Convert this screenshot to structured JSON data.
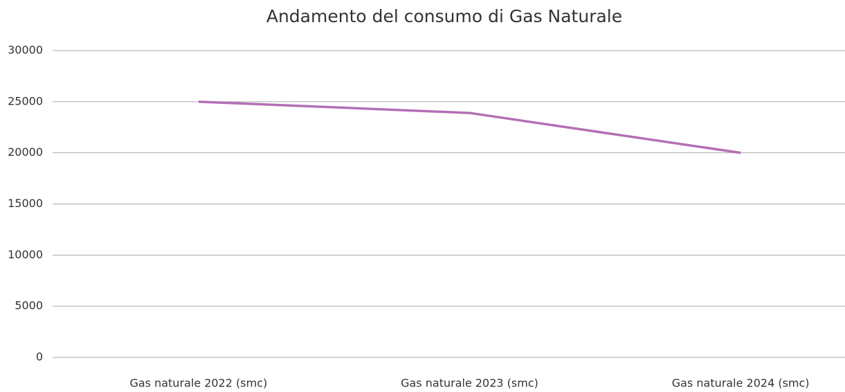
{
  "chart_data": {
    "type": "line",
    "title": "Andamento del consumo di Gas Naturale",
    "categories": [
      "Gas naturale 2022 (smc)",
      "Gas naturale 2023 (smc)",
      "Gas naturale 2024 (smc)"
    ],
    "series": [
      {
        "name": "Gas naturale",
        "color": "#b46fb4",
        "values": [
          25000,
          23900,
          20000
        ]
      }
    ],
    "ylim": [
      0,
      30000
    ],
    "yticks": [
      0,
      5000,
      10000,
      15000,
      20000,
      25000,
      30000
    ],
    "grid": true
  }
}
